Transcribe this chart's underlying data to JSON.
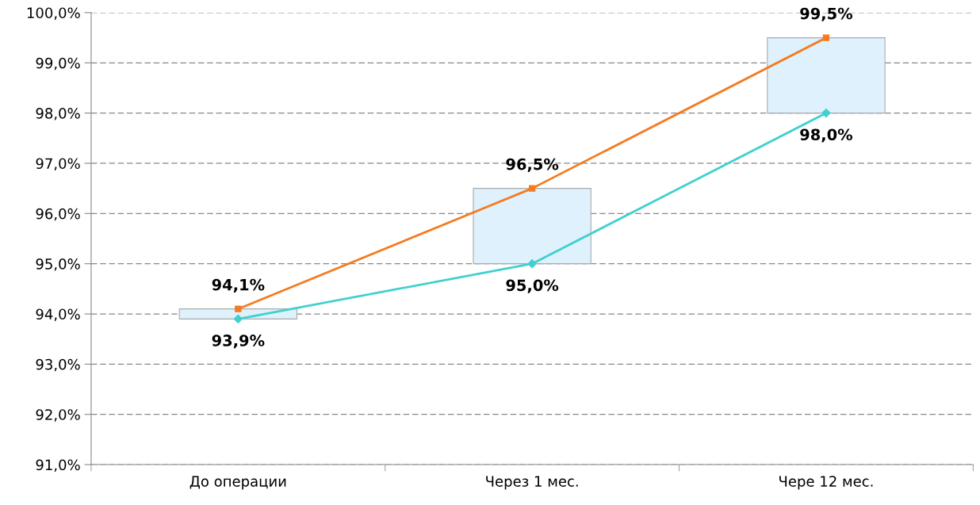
{
  "chart_data": {
    "type": "line",
    "categories": [
      "До операции",
      "Через 1 мес.",
      "Чере 12 мес."
    ],
    "series": [
      {
        "type": "bar",
        "color": "#dff1fc",
        "base": [
          93.9,
          95.0,
          98.0
        ],
        "values": [
          0.2,
          1.5,
          1.5
        ]
      },
      {
        "color": "#f47b20",
        "marker": "square",
        "values": [
          94.1,
          96.5,
          99.5
        ],
        "value_labels": [
          "94,1%",
          "96,5%",
          "99,5%"
        ]
      },
      {
        "color": "#40d0d0",
        "marker": "diamond",
        "values": [
          93.9,
          95.0,
          98.0
        ],
        "value_labels": [
          "93,9%",
          "95,0%",
          "98,0%"
        ]
      }
    ],
    "ylim": [
      91,
      100
    ],
    "yticks": [
      {
        "value": 91,
        "label": "91,0%"
      },
      {
        "value": 92,
        "label": "92,0%"
      },
      {
        "value": 93,
        "label": "93,0%"
      },
      {
        "value": 94,
        "label": "94,0%"
      },
      {
        "value": 95,
        "label": "95,0%"
      },
      {
        "value": 96,
        "label": "96,0%"
      },
      {
        "value": 97,
        "label": "97,0%"
      },
      {
        "value": 98,
        "label": "98,0%"
      },
      {
        "value": 99,
        "label": "99,0%"
      },
      {
        "value": 100,
        "label": "100,0%"
      }
    ],
    "grid": "y",
    "line_style": "solid"
  }
}
